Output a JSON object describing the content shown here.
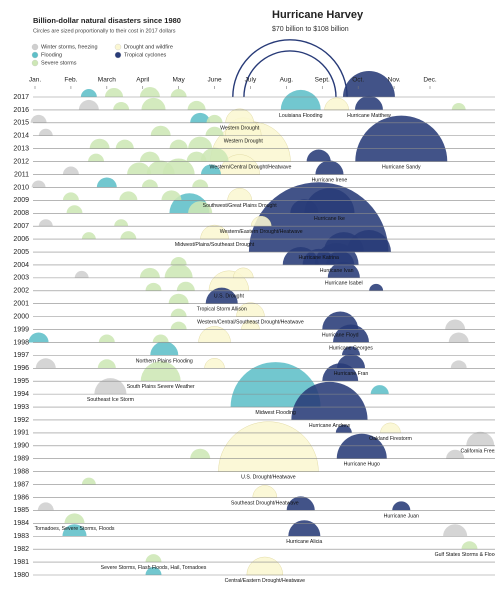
{
  "chart_data": {
    "type": "semicircle-timeline",
    "title": "Billion-dollar natural disasters since 1980",
    "subtitle": "Circles are sized proportionally to their cost in 2017 dollars",
    "xlim": [
      1,
      12
    ],
    "xticks": [
      {
        "value": 1,
        "label": "Jan."
      },
      {
        "value": 2,
        "label": "Feb."
      },
      {
        "value": 3,
        "label": "March"
      },
      {
        "value": 4,
        "label": "April"
      },
      {
        "value": 5,
        "label": "May"
      },
      {
        "value": 6,
        "label": "June"
      },
      {
        "value": 7,
        "label": "July"
      },
      {
        "value": 8,
        "label": "Aug."
      },
      {
        "value": 9,
        "label": "Sept."
      },
      {
        "value": 10,
        "label": "Oct."
      },
      {
        "value": 11,
        "label": "Nov."
      },
      {
        "value": 12,
        "label": "Dec."
      }
    ],
    "ylim": [
      1980,
      2017
    ],
    "yticks": [
      2017,
      2016,
      2015,
      2014,
      2013,
      2012,
      2011,
      2010,
      2009,
      2008,
      2007,
      2006,
      2005,
      2004,
      2003,
      2002,
      2001,
      2000,
      1999,
      1998,
      1997,
      1996,
      1995,
      1994,
      1993,
      1992,
      1991,
      1990,
      1989,
      1988,
      1987,
      1986,
      1985,
      1984,
      1983,
      1982,
      1981,
      1980
    ],
    "grid": true,
    "annotation": {
      "title": "Hurricane Harvey",
      "text": "$70 billion to $108 billion",
      "year": 2017,
      "x": 8.1,
      "costs": [
        70,
        108
      ]
    },
    "series": [
      {
        "name": "Winter storms, freezing",
        "color": "#cfcfcf",
        "events": [
          {
            "year": 2016,
            "x": 2.5,
            "cost": 3.3
          },
          {
            "year": 2015,
            "x": 1.1,
            "cost": 2.1
          },
          {
            "year": 2014,
            "x": 1.3,
            "cost": 1.6
          },
          {
            "year": 2011,
            "x": 2.0,
            "cost": 2.1
          },
          {
            "year": 2010,
            "x": 1.1,
            "cost": 1.6
          },
          {
            "year": 2007,
            "x": 1.3,
            "cost": 1.6
          },
          {
            "year": 2003,
            "x": 2.3,
            "cost": 1.6
          },
          {
            "year": 1999,
            "x": 12.7,
            "cost": 3.3
          },
          {
            "year": 1998,
            "x": 12.8,
            "cost": 3.3
          },
          {
            "year": 1996,
            "x": 1.3,
            "cost": 3.3
          },
          {
            "year": 1996,
            "x": 12.8,
            "cost": 2.1
          },
          {
            "year": 1994,
            "x": 3.1,
            "cost": 8.5,
            "label": "Southeast Ice Storm"
          },
          {
            "year": 1990,
            "x": 13.4,
            "cost": 6.5,
            "label": "California Freeze"
          },
          {
            "year": 1989,
            "x": 12.7,
            "cost": 2.7
          },
          {
            "year": 1985,
            "x": 1.3,
            "cost": 2.1
          },
          {
            "year": 1983,
            "x": 12.7,
            "cost": 4.8
          }
        ]
      },
      {
        "name": "Flooding",
        "color": "#5ebfc8",
        "events": [
          {
            "year": 2017,
            "x": 2.5,
            "cost": 2.1
          },
          {
            "year": 2016,
            "x": 8.4,
            "cost": 13.2,
            "label": "Louisiana Flooding"
          },
          {
            "year": 2015,
            "x": 5.6,
            "cost": 3.3
          },
          {
            "year": 2011,
            "x": 5.9,
            "cost": 3.3
          },
          {
            "year": 2010,
            "x": 3.0,
            "cost": 3.3
          },
          {
            "year": 2008,
            "x": 5.3,
            "cost": 13.2
          },
          {
            "year": 1998,
            "x": 1.1,
            "cost": 3.3
          },
          {
            "year": 1997,
            "x": 4.6,
            "cost": 6.5,
            "label": "Northern Plains Flooding"
          },
          {
            "year": 1994,
            "x": 10.6,
            "cost": 2.7
          },
          {
            "year": 1993,
            "x": 7.7,
            "cost": 66.9,
            "label": "Midwest Flooding"
          },
          {
            "year": 1983,
            "x": 2.1,
            "cost": 4.8
          },
          {
            "year": 1980,
            "x": 4.3,
            "cost": 2.1
          }
        ]
      },
      {
        "name": "Severe storms",
        "color": "#cde7b5",
        "events": [
          {
            "year": 2017,
            "x": 3.2,
            "cost": 2.7
          },
          {
            "year": 2017,
            "x": 4.2,
            "cost": 3.3
          },
          {
            "year": 2017,
            "x": 5.0,
            "cost": 2.1
          },
          {
            "year": 2016,
            "x": 3.4,
            "cost": 2.1
          },
          {
            "year": 2016,
            "x": 4.3,
            "cost": 4.8
          },
          {
            "year": 2016,
            "x": 5.5,
            "cost": 2.7
          },
          {
            "year": 2016,
            "x": 12.8,
            "cost": 1.6
          },
          {
            "year": 2015,
            "x": 6.0,
            "cost": 2.1
          },
          {
            "year": 2014,
            "x": 4.5,
            "cost": 3.3
          },
          {
            "year": 2014,
            "x": 6.0,
            "cost": 2.7
          },
          {
            "year": 2013,
            "x": 2.8,
            "cost": 3.3
          },
          {
            "year": 2013,
            "x": 3.5,
            "cost": 2.7
          },
          {
            "year": 2013,
            "x": 5.0,
            "cost": 2.7
          },
          {
            "year": 2013,
            "x": 5.6,
            "cost": 4.8
          },
          {
            "year": 2012,
            "x": 2.7,
            "cost": 2.1
          },
          {
            "year": 2012,
            "x": 4.2,
            "cost": 3.3
          },
          {
            "year": 2012,
            "x": 5.5,
            "cost": 3.3
          },
          {
            "year": 2012,
            "x": 6.0,
            "cost": 6.5
          },
          {
            "year": 2011,
            "x": 3.9,
            "cost": 4.8
          },
          {
            "year": 2011,
            "x": 4.5,
            "cost": 6.5
          },
          {
            "year": 2011,
            "x": 5.0,
            "cost": 8.5
          },
          {
            "year": 2010,
            "x": 4.2,
            "cost": 2.1
          },
          {
            "year": 2010,
            "x": 5.6,
            "cost": 2.1
          },
          {
            "year": 2009,
            "x": 2.0,
            "cost": 2.1
          },
          {
            "year": 2009,
            "x": 3.6,
            "cost": 2.7
          },
          {
            "year": 2009,
            "x": 4.8,
            "cost": 3.3
          },
          {
            "year": 2008,
            "x": 2.1,
            "cost": 2.1
          },
          {
            "year": 2008,
            "x": 5.6,
            "cost": 4.8
          },
          {
            "year": 2007,
            "x": 3.4,
            "cost": 1.6
          },
          {
            "year": 2006,
            "x": 2.5,
            "cost": 1.6
          },
          {
            "year": 2006,
            "x": 3.6,
            "cost": 2.1
          },
          {
            "year": 2004,
            "x": 5.0,
            "cost": 2.1
          },
          {
            "year": 2003,
            "x": 4.2,
            "cost": 3.3
          },
          {
            "year": 2003,
            "x": 5.0,
            "cost": 6.5
          },
          {
            "year": 2002,
            "x": 4.3,
            "cost": 2.1
          },
          {
            "year": 2002,
            "x": 5.2,
            "cost": 2.7
          },
          {
            "year": 2001,
            "x": 5.0,
            "cost": 3.3
          },
          {
            "year": 2000,
            "x": 5.0,
            "cost": 2.1
          },
          {
            "year": 1999,
            "x": 5.0,
            "cost": 2.1
          },
          {
            "year": 1998,
            "x": 3.0,
            "cost": 2.1
          },
          {
            "year": 1998,
            "x": 4.5,
            "cost": 2.1
          },
          {
            "year": 1996,
            "x": 3.0,
            "cost": 2.7
          },
          {
            "year": 1995,
            "x": 4.5,
            "cost": 13.2,
            "label": "South Plains Severe Weather"
          },
          {
            "year": 1989,
            "x": 5.6,
            "cost": 3.3
          },
          {
            "year": 1987,
            "x": 2.5,
            "cost": 1.6
          },
          {
            "year": 1984,
            "x": 2.1,
            "cost": 3.3,
            "label": "Tornadoes, Severe Storms, Floods"
          },
          {
            "year": 1982,
            "x": 13.1,
            "cost": 2.1,
            "label": "Gulf States Storms & Flooding"
          },
          {
            "year": 1981,
            "x": 4.3,
            "cost": 2.1,
            "label": "Severe Storms, Flash Floods, Hail, Tornadoes"
          }
        ]
      },
      {
        "name": "Drought and wildfire",
        "color": "#fbf7d2",
        "events": [
          {
            "year": 2016,
            "x": 9.4,
            "cost": 4.8
          },
          {
            "year": 2015,
            "x": 6.7,
            "cost": 6.5,
            "label": "Western Drought"
          },
          {
            "year": 2014,
            "x": 6.8,
            "cost": 10.7,
            "label": "Western Drought"
          },
          {
            "year": 2012,
            "x": 7.0,
            "cost": 52.9,
            "label": "Western/Central Drought/Heatwave"
          },
          {
            "year": 2011,
            "x": 6.7,
            "cost": 13.2
          },
          {
            "year": 2009,
            "x": 6.7,
            "cost": 4.8,
            "label": "Southwest/Great Plains Drought"
          },
          {
            "year": 2007,
            "x": 7.3,
            "cost": 3.3,
            "label": "Western/Eastern Drought/Heatwave"
          },
          {
            "year": 2006,
            "x": 6.0,
            "cost": 6.5,
            "label": "Midwest/Plains/Southeast Drought"
          },
          {
            "year": 2003,
            "x": 6.8,
            "cost": 3.3
          },
          {
            "year": 2002,
            "x": 6.4,
            "cost": 13.2,
            "label": "U.S. Drought"
          },
          {
            "year": 2000,
            "x": 7.0,
            "cost": 6.5,
            "label": "Western/Central/Southeast Drought/Heatwave"
          },
          {
            "year": 1999,
            "x": 7.0,
            "cost": 2.7
          },
          {
            "year": 1998,
            "x": 6.0,
            "cost": 8.5
          },
          {
            "year": 1996,
            "x": 6.0,
            "cost": 3.3
          },
          {
            "year": 1991,
            "x": 10.9,
            "cost": 3.3,
            "label": "Oakland Firestorm"
          },
          {
            "year": 1988,
            "x": 7.5,
            "cost": 82.6,
            "label": "U.S. Drought/Heatwave"
          },
          {
            "year": 1986,
            "x": 7.4,
            "cost": 4.8,
            "label": "Southeast Drought/Heatwave"
          },
          {
            "year": 1980,
            "x": 7.4,
            "cost": 10.7,
            "label": "Central/Eastern Drought/Heatwave"
          }
        ]
      },
      {
        "name": "Tropical cyclones",
        "color": "#283b78",
        "events": [
          {
            "year": 2017,
            "x": 10.3,
            "cost": 22.3
          },
          {
            "year": 2016,
            "x": 10.3,
            "cost": 6.5,
            "label": "Hurricane Matthew"
          },
          {
            "year": 2012,
            "x": 8.9,
            "cost": 4.8
          },
          {
            "year": 2012,
            "x": 11.2,
            "cost": 70,
            "label": "Hurricane Sandy"
          },
          {
            "year": 2011,
            "x": 9.2,
            "cost": 6.5,
            "label": "Hurricane Irene"
          },
          {
            "year": 2008,
            "x": 8.5,
            "cost": 6.5
          },
          {
            "year": 2008,
            "x": 9.2,
            "cost": 20.7,
            "label": "Hurricane Ike"
          },
          {
            "year": 2005,
            "x": 8.9,
            "cost": 161,
            "label": "Hurricane Katrina"
          },
          {
            "year": 2005,
            "x": 9.6,
            "cost": 13.2
          },
          {
            "year": 2005,
            "x": 10.3,
            "cost": 16
          },
          {
            "year": 2004,
            "x": 8.4,
            "cost": 10.7
          },
          {
            "year": 2004,
            "x": 8.9,
            "cost": 8.5
          },
          {
            "year": 2004,
            "x": 9.4,
            "cost": 16,
            "label": "Hurricane Ivan"
          },
          {
            "year": 2004,
            "x": 9.5,
            "cost": 6.5
          },
          {
            "year": 2003,
            "x": 9.6,
            "cost": 8.5,
            "label": "Hurricane Isabel"
          },
          {
            "year": 2002,
            "x": 10.5,
            "cost": 1.6
          },
          {
            "year": 2001,
            "x": 6.2,
            "cost": 8.5,
            "label": "Tropical Storm Allison"
          },
          {
            "year": 1999,
            "x": 9.5,
            "cost": 10.7,
            "label": "Hurricane Floyd"
          },
          {
            "year": 1998,
            "x": 9.8,
            "cost": 10.7,
            "label": "Hurricane Georges"
          },
          {
            "year": 1997,
            "x": 9.8,
            "cost": 2.7
          },
          {
            "year": 1996,
            "x": 9.8,
            "cost": 6.5,
            "label": "Hurricane Fran"
          },
          {
            "year": 1995,
            "x": 9.5,
            "cost": 10.7
          },
          {
            "year": 1992,
            "x": 9.2,
            "cost": 48,
            "label": "Hurricane Andrew"
          },
          {
            "year": 1991,
            "x": 9.6,
            "cost": 2.1
          },
          {
            "year": 1989,
            "x": 10.1,
            "cost": 20.7,
            "label": "Hurricane Hugo"
          },
          {
            "year": 1985,
            "x": 8.4,
            "cost": 6.5
          },
          {
            "year": 1985,
            "x": 11.2,
            "cost": 2.7,
            "label": "Hurricane Juan"
          },
          {
            "year": 1983,
            "x": 8.5,
            "cost": 8.5,
            "label": "Hurricane Alicia"
          }
        ]
      }
    ]
  }
}
